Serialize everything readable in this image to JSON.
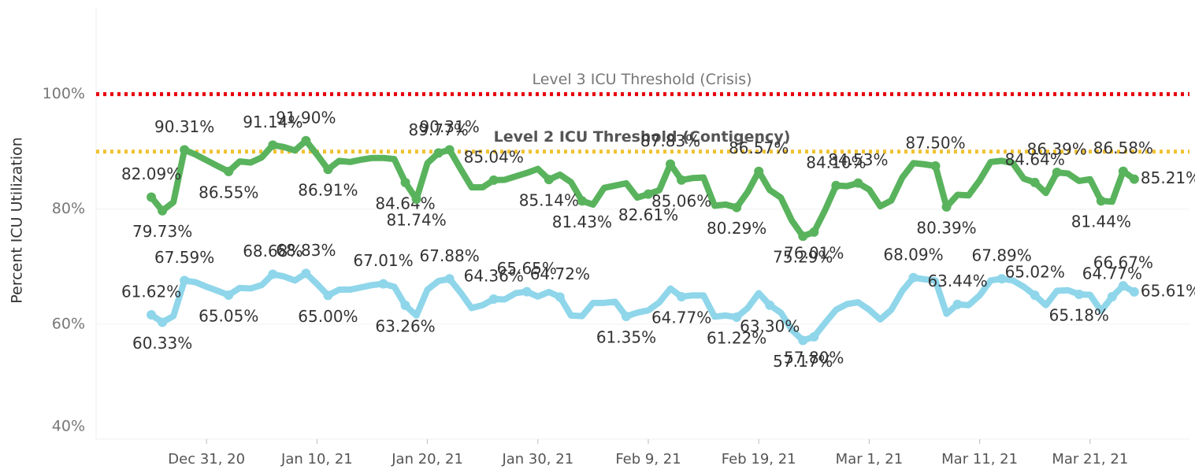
{
  "chart_data": {
    "type": "line",
    "ylabel": "Percent ICU Utilization",
    "x": [
      "2020-12-26",
      "2020-12-27",
      "2020-12-28",
      "2020-12-29",
      "2020-12-30",
      "2020-12-31",
      "2021-01-01",
      "2021-01-02",
      "2021-01-03",
      "2021-01-04",
      "2021-01-05",
      "2021-01-06",
      "2021-01-07",
      "2021-01-08",
      "2021-01-09",
      "2021-01-10",
      "2021-01-11",
      "2021-01-12",
      "2021-01-13",
      "2021-01-14",
      "2021-01-15",
      "2021-01-16",
      "2021-01-17",
      "2021-01-18",
      "2021-01-19",
      "2021-01-20",
      "2021-01-21",
      "2021-01-22",
      "2021-01-23",
      "2021-01-24",
      "2021-01-25",
      "2021-01-26",
      "2021-01-27",
      "2021-01-28",
      "2021-01-29",
      "2021-01-30",
      "2021-01-31",
      "2021-02-01",
      "2021-02-02",
      "2021-02-03",
      "2021-02-04",
      "2021-02-05",
      "2021-02-06",
      "2021-02-07",
      "2021-02-08",
      "2021-02-09",
      "2021-02-10",
      "2021-02-11",
      "2021-02-12",
      "2021-02-13",
      "2021-02-14",
      "2021-02-15",
      "2021-02-16",
      "2021-02-17",
      "2021-02-18",
      "2021-02-19",
      "2021-02-20",
      "2021-02-21",
      "2021-02-22",
      "2021-02-23",
      "2021-02-24",
      "2021-02-25",
      "2021-02-26",
      "2021-02-27",
      "2021-02-28",
      "2021-03-01",
      "2021-03-02",
      "2021-03-03",
      "2021-03-04",
      "2021-03-05",
      "2021-03-06",
      "2021-03-07",
      "2021-03-08",
      "2021-03-09",
      "2021-03-10",
      "2021-03-11",
      "2021-03-12",
      "2021-03-13",
      "2021-03-14",
      "2021-03-15",
      "2021-03-16",
      "2021-03-17",
      "2021-03-18",
      "2021-03-19",
      "2021-03-20",
      "2021-03-21",
      "2021-03-22",
      "2021-03-23",
      "2021-03-24",
      "2021-03-25"
    ],
    "series": [
      {
        "color": "#59b35d",
        "values": [
          82.09,
          79.73,
          81.2,
          90.31,
          89.5,
          88.5,
          87.5,
          86.55,
          88.3,
          88.1,
          89.0,
          91.14,
          90.8,
          90.2,
          91.9,
          89.5,
          86.91,
          88.4,
          88.2,
          88.6,
          88.9,
          88.9,
          88.7,
          84.64,
          81.74,
          88.0,
          89.77,
          90.31,
          87.0,
          83.8,
          83.8,
          85.04,
          85.1,
          85.7,
          86.3,
          87.0,
          85.14,
          86.0,
          84.7,
          81.43,
          80.8,
          83.7,
          84.1,
          84.5,
          82.0,
          82.61,
          83.3,
          87.83,
          85.06,
          85.4,
          85.5,
          80.6,
          80.8,
          80.29,
          83.0,
          86.57,
          83.3,
          82.0,
          78.0,
          75.29,
          76.01,
          79.8,
          84.1,
          84.0,
          84.53,
          83.4,
          80.5,
          81.5,
          85.5,
          88.0,
          87.8,
          87.5,
          80.39,
          82.5,
          82.4,
          85.0,
          88.2,
          88.4,
          88.0,
          85.3,
          84.64,
          82.8,
          86.39,
          86.2,
          84.9,
          85.2,
          81.44,
          81.3,
          86.58,
          85.21
        ],
        "value_labels": [
          "82.09%",
          "79.73%",
          null,
          "90.31%",
          null,
          null,
          null,
          "86.55%",
          null,
          null,
          null,
          "91.14%",
          null,
          null,
          "91.90%",
          null,
          "86.91%",
          null,
          null,
          null,
          null,
          null,
          null,
          "84.64%",
          "81.74%",
          null,
          "89.77%",
          "90.31%",
          null,
          null,
          null,
          "85.04%",
          null,
          null,
          null,
          null,
          "85.14%",
          null,
          null,
          "81.43%",
          null,
          null,
          null,
          null,
          null,
          "82.61%",
          null,
          "87.83%",
          "85.06%",
          null,
          null,
          null,
          null,
          "80.29%",
          null,
          "86.57%",
          null,
          null,
          null,
          "75.29%",
          "76.01%",
          null,
          "84.10%",
          null,
          "84.53%",
          null,
          null,
          null,
          null,
          null,
          null,
          "87.50%",
          "80.39%",
          null,
          null,
          null,
          null,
          null,
          null,
          null,
          "84.64%",
          null,
          "86.39%",
          null,
          null,
          null,
          "81.44%",
          null,
          "86.58%",
          "85.21%"
        ]
      },
      {
        "color": "#8fd6ea",
        "values": [
          61.62,
          60.33,
          61.4,
          67.59,
          67.3,
          66.5,
          65.8,
          65.05,
          66.3,
          66.2,
          66.8,
          68.68,
          68.3,
          67.6,
          68.83,
          67.0,
          65.0,
          66.0,
          66.0,
          66.4,
          66.8,
          67.01,
          66.5,
          63.26,
          61.5,
          66.0,
          67.5,
          67.88,
          65.5,
          62.8,
          63.3,
          64.36,
          64.3,
          65.4,
          65.65,
          64.8,
          65.6,
          64.72,
          61.5,
          61.4,
          63.7,
          63.7,
          63.9,
          61.35,
          62.0,
          62.4,
          63.8,
          66.2,
          64.77,
          65.0,
          65.0,
          61.3,
          61.5,
          61.22,
          62.8,
          65.4,
          63.3,
          62.0,
          59.0,
          57.17,
          57.8,
          60.2,
          62.5,
          63.5,
          63.8,
          62.5,
          60.8,
          62.5,
          65.8,
          68.09,
          67.8,
          67.6,
          61.8,
          63.44,
          63.3,
          65.0,
          67.6,
          67.89,
          67.6,
          66.5,
          65.02,
          63.3,
          65.8,
          65.9,
          65.18,
          65.1,
          62.3,
          64.77,
          66.67,
          65.61
        ],
        "value_labels": [
          "61.62%",
          "60.33%",
          null,
          "67.59%",
          null,
          null,
          null,
          "65.05%",
          null,
          null,
          null,
          "68.68%",
          null,
          null,
          "68.83%",
          null,
          "65.00%",
          null,
          null,
          null,
          null,
          "67.01%",
          null,
          "63.26%",
          null,
          null,
          null,
          "67.88%",
          null,
          null,
          null,
          "64.36%",
          null,
          null,
          "65.65%",
          null,
          null,
          "64.72%",
          null,
          null,
          null,
          null,
          null,
          "61.35%",
          null,
          null,
          null,
          null,
          "64.77%",
          null,
          null,
          null,
          null,
          "61.22%",
          null,
          null,
          "63.30%",
          null,
          null,
          "57.17%",
          "57.80%",
          null,
          null,
          null,
          null,
          null,
          null,
          null,
          null,
          "68.09%",
          null,
          null,
          null,
          "63.44%",
          null,
          null,
          null,
          "67.89%",
          null,
          null,
          "65.02%",
          null,
          null,
          null,
          "65.18%",
          null,
          null,
          "64.77%",
          "66.67%",
          "65.61%"
        ]
      }
    ],
    "thresholds": [
      {
        "label": "Level 3 ICU Threshold (Crisis)",
        "value": 100,
        "color": "#e8000b"
      },
      {
        "label": "Level 2 ICU Threshold (Contigency)",
        "value": 90,
        "color": "#f1c232"
      }
    ],
    "xlim": [
      "2020-12-21",
      "2021-03-30"
    ],
    "xticks": [
      {
        "value": "2020-12-31",
        "label": "Dec 31, 20"
      },
      {
        "value": "2021-01-10",
        "label": "Jan 10, 21"
      },
      {
        "value": "2021-01-20",
        "label": "Jan 20, 21"
      },
      {
        "value": "2021-01-30",
        "label": "Jan 30, 21"
      },
      {
        "value": "2021-02-09",
        "label": "Feb 9, 21"
      },
      {
        "value": "2021-02-19",
        "label": "Feb 19, 21"
      },
      {
        "value": "2021-03-01",
        "label": "Mar 1, 21"
      },
      {
        "value": "2021-03-11",
        "label": "Mar 11, 21"
      },
      {
        "value": "2021-03-21",
        "label": "Mar 21, 21"
      }
    ],
    "ylim": [
      40,
      115
    ],
    "yticks": [
      {
        "value": 40,
        "label": "40%"
      },
      {
        "value": 60,
        "label": "60%"
      },
      {
        "value": 80,
        "label": "80%"
      },
      {
        "value": 100,
        "label": "100%"
      }
    ],
    "grid": true
  }
}
